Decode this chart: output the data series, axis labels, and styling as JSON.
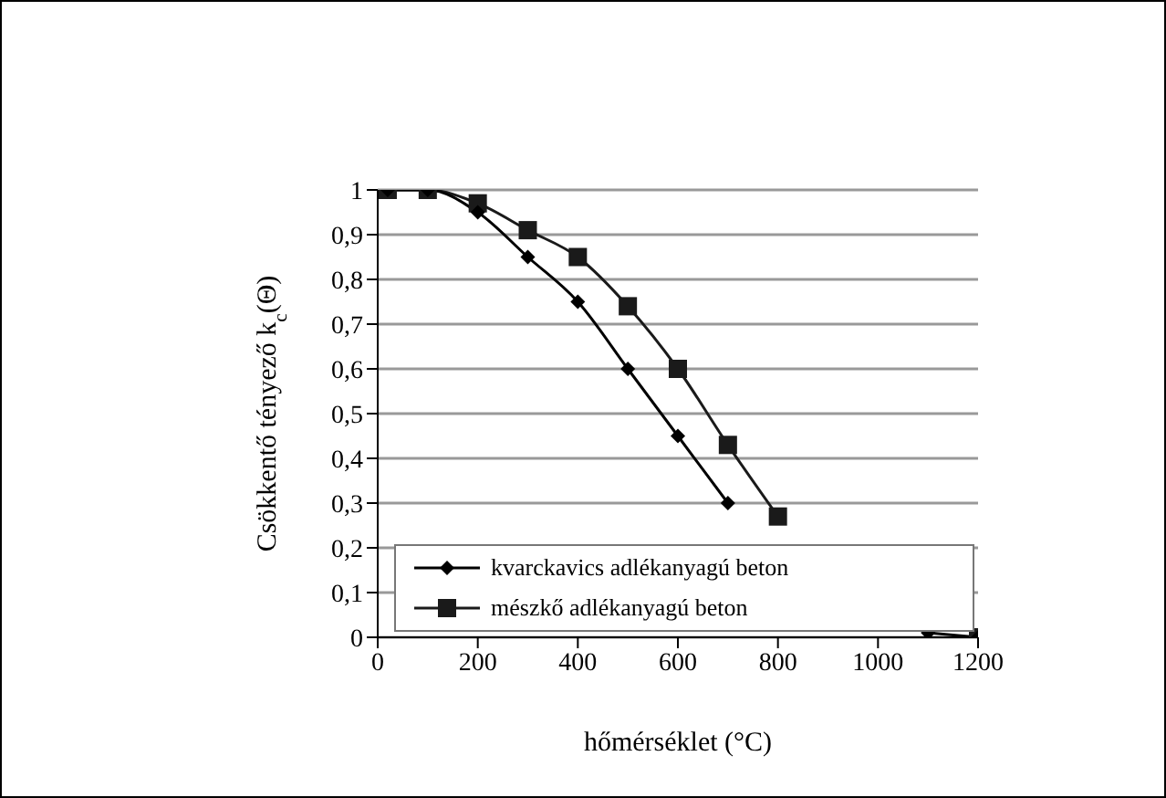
{
  "chart_data": {
    "type": "line",
    "xlabel": "hőmérséklet (°C)",
    "ylabel": "Csökkentő tényező  k$_{c}$(Θ)",
    "x": [
      20,
      100,
      200,
      300,
      400,
      500,
      600,
      700,
      800,
      900,
      1000,
      1100,
      1200
    ],
    "series": [
      {
        "name": "kvarckavics adlékanyagú beton",
        "color": "#000000",
        "marker": "diamond",
        "values": [
          1,
          1,
          0.95,
          0.85,
          0.75,
          0.6,
          0.45,
          0.3,
          null,
          null,
          null,
          0.01,
          0
        ]
      },
      {
        "name": "mészkő adlékanyagú beton",
        "color": "#1a1a1a",
        "marker": "square",
        "values": [
          1,
          1,
          0.97,
          0.91,
          0.85,
          0.74,
          0.6,
          0.43,
          0.27,
          null,
          null,
          null,
          0
        ]
      }
    ],
    "xlim": [
      0,
      1200
    ],
    "xticks": [
      0,
      200,
      400,
      600,
      800,
      1000,
      1200
    ],
    "ylim": [
      0,
      1
    ],
    "yticks": [
      0,
      {
        "value": 0.1,
        "label": "0,1"
      },
      {
        "value": 0.2,
        "label": "0,2"
      },
      {
        "value": 0.3,
        "label": "0,3"
      },
      {
        "value": 0.4,
        "label": "0,4"
      },
      {
        "value": 0.5,
        "label": "0,5"
      },
      {
        "value": 0.6,
        "label": "0,6"
      },
      {
        "value": 0.7,
        "label": "0,7"
      },
      {
        "value": 0.8,
        "label": "0,8"
      },
      {
        "value": 0.9,
        "label": "0,9"
      },
      1
    ],
    "grid": "y",
    "legend": "bottom",
    "line_style": "solid"
  }
}
